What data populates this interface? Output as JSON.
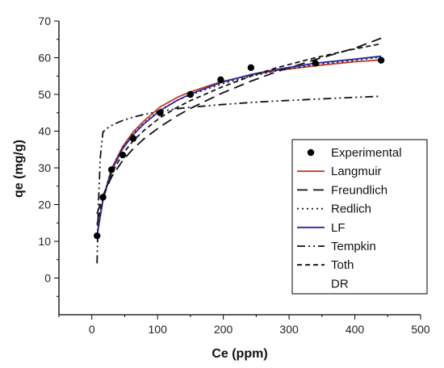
{
  "chart_data": {
    "type": "scatter",
    "xlabel": "Ce (ppm)",
    "ylabel": "qe (mg/g)",
    "xlim": [
      -50,
      500
    ],
    "ylim": [
      -10,
      70
    ],
    "xticks": [
      0,
      100,
      200,
      300,
      400,
      500
    ],
    "yticks": [
      0,
      10,
      20,
      30,
      40,
      50,
      60,
      70
    ],
    "legend_position": "right",
    "grid": false,
    "series": [
      {
        "name": "Experimental",
        "style": "markers",
        "color": "#000000",
        "x": [
          8,
          17,
          30,
          47,
          63,
          104,
          150,
          196,
          242,
          340,
          440
        ],
        "y": [
          11.5,
          22,
          29.5,
          33.5,
          38,
          45,
          50,
          54,
          57.3,
          58.5,
          59.3
        ]
      },
      {
        "name": "Langmuir",
        "style": "line",
        "color": "#c0392b",
        "dash": "",
        "x": [
          8,
          17,
          30,
          47,
          63,
          80,
          104,
          130,
          150,
          196,
          242,
          280,
          340,
          400,
          440
        ],
        "y": [
          11.5,
          21.5,
          29.8,
          35.8,
          39.8,
          42.9,
          46.6,
          49.2,
          50.7,
          53.4,
          55.3,
          56.5,
          57.8,
          58.9,
          59.4
        ]
      },
      {
        "name": "Freundlich",
        "style": "line",
        "color": "#111111",
        "dash": "13,7",
        "x": [
          8,
          17,
          30,
          47,
          63,
          80,
          104,
          130,
          150,
          196,
          242,
          280,
          340,
          400,
          440
        ],
        "y": [
          17.5,
          22.5,
          27.5,
          32.0,
          35.2,
          38.0,
          41.2,
          44.2,
          46.2,
          50.2,
          53.6,
          56.1,
          59.5,
          62.6,
          65.3
        ]
      },
      {
        "name": "Redlich",
        "style": "line",
        "color": "#111111",
        "dash": "2,4",
        "x": [
          8,
          17,
          30,
          47,
          63,
          80,
          104,
          130,
          150,
          196,
          242,
          280,
          340,
          400,
          440
        ],
        "y": [
          11.8,
          21.8,
          29.6,
          35.5,
          39.3,
          42.3,
          45.8,
          48.4,
          49.9,
          52.8,
          55.0,
          56.4,
          58.1,
          59.3,
          60.2
        ]
      },
      {
        "name": "LF",
        "style": "line",
        "color": "#2a2aa0",
        "dash": "",
        "x": [
          8,
          17,
          30,
          47,
          63,
          80,
          104,
          130,
          150,
          196,
          242,
          280,
          340,
          400,
          440
        ],
        "y": [
          11.5,
          21.2,
          29.3,
          35.2,
          39.0,
          42.1,
          45.6,
          48.4,
          50.1,
          53.2,
          55.4,
          56.8,
          58.5,
          59.6,
          60.4
        ]
      },
      {
        "name": "Tempkin",
        "style": "line",
        "color": "#111111",
        "dash": "10,4,2,4,2,4",
        "x": [
          8,
          10,
          13,
          17,
          25,
          35,
          47,
          63,
          80,
          104,
          130,
          150,
          196,
          242,
          280,
          340,
          400,
          440
        ],
        "y": [
          4,
          20,
          33,
          39.8,
          41.0,
          42.0,
          42.9,
          43.8,
          44.6,
          45.4,
          46.1,
          46.5,
          47.2,
          47.8,
          48.2,
          48.7,
          49.2,
          49.5
        ]
      },
      {
        "name": "Toth",
        "style": "line",
        "color": "#111111",
        "dash": "6,4",
        "x": [
          8,
          17,
          30,
          47,
          63,
          80,
          104,
          130,
          150,
          196,
          242,
          280,
          340,
          400,
          440
        ],
        "y": [
          14.5,
          22.0,
          28.5,
          33.8,
          37.4,
          40.3,
          43.7,
          46.5,
          48.3,
          51.9,
          55.0,
          57.2,
          60.0,
          62.4,
          63.8
        ]
      },
      {
        "name": "DR",
        "style": "none",
        "color": "#111111",
        "x": [],
        "y": []
      }
    ]
  }
}
